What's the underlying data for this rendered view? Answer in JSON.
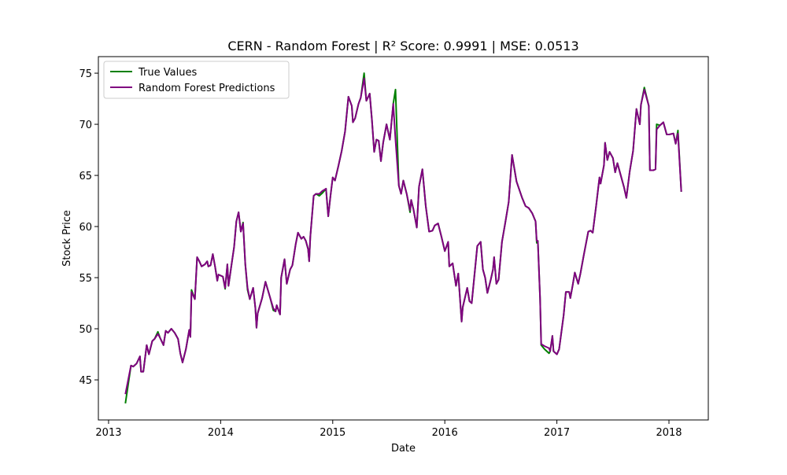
{
  "chart_data": {
    "type": "line",
    "title": "CERN - Random Forest | R² Score: 0.9991 | MSE: 0.0513",
    "xlabel": "Date",
    "ylabel": "Stock Price",
    "legend": "upper left",
    "grid": false,
    "xlim": [
      2012.909,
      2018.351
    ],
    "xticks": [
      2013,
      2014,
      2015,
      2016,
      2017,
      2018
    ],
    "ylim": [
      41.08,
      76.62
    ],
    "yticks": [
      45,
      50,
      55,
      60,
      65,
      70,
      75
    ],
    "x": [
      2013.15,
      2013.2,
      2013.22,
      2013.25,
      2013.28,
      2013.29,
      2013.31,
      2013.34,
      2013.36,
      2013.39,
      2013.41,
      2013.44,
      2013.46,
      2013.49,
      2013.51,
      2013.53,
      2013.56,
      2013.59,
      2013.62,
      2013.64,
      2013.66,
      2013.69,
      2013.72,
      2013.73,
      2013.74,
      2013.77,
      2013.79,
      2013.81,
      2013.83,
      2013.86,
      2013.88,
      2013.89,
      2013.91,
      2013.93,
      2013.95,
      2013.97,
      2013.98,
      2014.02,
      2014.04,
      2014.06,
      2014.07,
      2014.1,
      2014.12,
      2014.14,
      2014.16,
      2014.18,
      2014.2,
      2014.22,
      2014.24,
      2014.26,
      2014.29,
      2014.31,
      2014.32,
      2014.33,
      2014.37,
      2014.4,
      2014.44,
      2014.47,
      2014.49,
      2014.5,
      2014.53,
      2014.54,
      2014.57,
      2014.59,
      2014.62,
      2014.64,
      2014.67,
      2014.69,
      2014.72,
      2014.74,
      2014.76,
      2014.78,
      2014.79,
      2014.8,
      2014.83,
      2014.85,
      2014.88,
      2014.91,
      2014.94,
      2014.96,
      2014.98,
      2015.0,
      2015.02,
      2015.05,
      2015.08,
      2015.11,
      2015.14,
      2015.17,
      2015.18,
      2015.2,
      2015.23,
      2015.25,
      2015.28,
      2015.3,
      2015.33,
      2015.35,
      2015.37,
      2015.39,
      2015.41,
      2015.43,
      2015.45,
      2015.48,
      2015.51,
      2015.54,
      2015.56,
      2015.59,
      2015.61,
      2015.63,
      2015.66,
      2015.69,
      2015.7,
      2015.72,
      2015.75,
      2015.77,
      2015.8,
      2015.83,
      2015.86,
      2015.89,
      2015.91,
      2015.94,
      2015.97,
      2016.0,
      2016.03,
      2016.04,
      2016.07,
      2016.1,
      2016.12,
      2016.15,
      2016.16,
      2016.2,
      2016.22,
      2016.24,
      2016.29,
      2016.32,
      2016.34,
      2016.36,
      2016.38,
      2016.41,
      2016.43,
      2016.44,
      2016.46,
      2016.48,
      2016.51,
      2016.54,
      2016.57,
      2016.6,
      2016.64,
      2016.69,
      2016.72,
      2016.75,
      2016.78,
      2016.81,
      2016.82,
      2016.83,
      2016.85,
      2016.86,
      2016.89,
      2016.93,
      2016.94,
      2016.96,
      2016.97,
      2017.0,
      2017.02,
      2017.06,
      2017.08,
      2017.11,
      2017.12,
      2017.14,
      2017.16,
      2017.19,
      2017.21,
      2017.24,
      2017.28,
      2017.3,
      2017.32,
      2017.35,
      2017.38,
      2017.39,
      2017.42,
      2017.43,
      2017.45,
      2017.47,
      2017.5,
      2017.52,
      2017.54,
      2017.57,
      2017.6,
      2017.62,
      2017.65,
      2017.68,
      2017.71,
      2017.74,
      2017.75,
      2017.78,
      2017.82,
      2017.83,
      2017.86,
      2017.88,
      2017.89,
      2017.92,
      2017.95,
      2017.98,
      2018.0,
      2018.04,
      2018.06,
      2018.08,
      2018.11
    ],
    "series": [
      {
        "name": "True Values",
        "color": "#008000",
        "values": [
          42.7,
          46.4,
          46.3,
          46.6,
          47.3,
          45.8,
          45.8,
          48.4,
          47.5,
          48.8,
          49.0,
          49.7,
          49.1,
          48.4,
          49.8,
          49.6,
          50.0,
          49.6,
          49.0,
          47.6,
          46.7,
          48.0,
          49.9,
          49.2,
          53.8,
          52.9,
          57.0,
          56.6,
          56.1,
          56.3,
          56.6,
          56.1,
          56.2,
          57.3,
          56.1,
          54.7,
          55.3,
          55.1,
          53.9,
          56.3,
          54.2,
          56.5,
          58.0,
          60.5,
          61.4,
          59.5,
          60.4,
          56.3,
          53.8,
          52.9,
          54.0,
          52.0,
          50.1,
          51.5,
          53.0,
          54.6,
          53.1,
          51.8,
          51.7,
          52.3,
          51.4,
          55.0,
          56.8,
          54.4,
          55.8,
          56.2,
          58.3,
          59.4,
          58.8,
          59.0,
          58.6,
          57.8,
          56.6,
          59.0,
          63.0,
          63.2,
          63.0,
          63.3,
          63.7,
          61.0,
          63.0,
          64.8,
          64.5,
          65.9,
          67.4,
          69.3,
          72.7,
          71.8,
          70.2,
          70.6,
          72.0,
          72.6,
          75.0,
          72.3,
          73.0,
          70.4,
          67.3,
          68.5,
          68.4,
          66.4,
          68.2,
          70.0,
          68.5,
          72.0,
          73.4,
          64.0,
          63.2,
          64.5,
          63.2,
          61.4,
          62.6,
          61.7,
          59.9,
          63.9,
          65.6,
          62.0,
          59.5,
          59.6,
          60.1,
          60.3,
          59.0,
          57.6,
          58.5,
          56.1,
          56.4,
          54.2,
          55.4,
          50.7,
          52.1,
          54.0,
          52.7,
          52.5,
          58.1,
          58.5,
          55.8,
          55.0,
          53.5,
          54.8,
          55.8,
          57.0,
          54.4,
          54.8,
          58.5,
          60.4,
          62.4,
          67.0,
          64.4,
          62.8,
          62.0,
          61.8,
          61.3,
          60.5,
          58.4,
          58.6,
          53.0,
          48.4,
          48.0,
          47.6,
          47.8,
          49.3,
          47.8,
          47.5,
          48.0,
          51.3,
          53.6,
          53.6,
          53.0,
          54.2,
          55.5,
          54.4,
          55.4,
          57.2,
          59.5,
          59.6,
          59.4,
          62.0,
          64.8,
          64.2,
          66.0,
          68.2,
          66.5,
          67.3,
          66.7,
          65.3,
          66.2,
          65.0,
          63.8,
          62.8,
          65.4,
          67.4,
          71.5,
          70.0,
          71.9,
          73.6,
          71.8,
          65.5,
          65.5,
          65.6,
          70.0,
          69.9,
          70.2,
          69.0,
          69.0,
          69.1,
          68.1,
          69.4,
          63.4
        ]
      },
      {
        "name": "Random Forest Predictions",
        "color": "#800080",
        "values": [
          43.6,
          46.4,
          46.3,
          46.6,
          47.3,
          45.8,
          45.8,
          48.4,
          47.5,
          48.8,
          49.0,
          49.5,
          49.1,
          48.4,
          49.8,
          49.6,
          50.0,
          49.6,
          49.0,
          47.6,
          46.7,
          48.0,
          49.9,
          49.2,
          53.6,
          52.9,
          57.0,
          56.6,
          56.1,
          56.3,
          56.6,
          56.1,
          56.2,
          57.3,
          56.1,
          54.7,
          55.3,
          55.1,
          54.0,
          56.3,
          54.2,
          56.5,
          58.0,
          60.5,
          61.4,
          59.5,
          60.3,
          56.3,
          54.0,
          52.9,
          54.0,
          52.0,
          50.1,
          51.5,
          53.0,
          54.6,
          53.1,
          52.0,
          51.7,
          52.3,
          51.4,
          55.0,
          56.8,
          54.4,
          55.8,
          56.2,
          58.3,
          59.4,
          58.8,
          59.0,
          58.6,
          57.8,
          56.6,
          59.0,
          63.0,
          63.2,
          63.2,
          63.5,
          63.7,
          61.0,
          63.0,
          64.8,
          64.5,
          65.9,
          67.4,
          69.3,
          72.7,
          71.8,
          70.2,
          70.6,
          72.0,
          72.6,
          74.5,
          72.3,
          73.0,
          70.4,
          67.3,
          68.5,
          68.4,
          66.4,
          68.2,
          70.0,
          68.5,
          72.0,
          68.5,
          64.0,
          63.2,
          64.5,
          63.2,
          61.6,
          62.6,
          61.7,
          59.9,
          63.9,
          65.6,
          62.0,
          59.5,
          59.6,
          60.1,
          60.3,
          59.0,
          57.6,
          58.5,
          56.1,
          56.4,
          54.2,
          55.4,
          50.7,
          52.1,
          54.0,
          52.7,
          52.5,
          58.1,
          58.5,
          55.8,
          55.0,
          53.5,
          54.8,
          55.8,
          57.0,
          54.4,
          54.8,
          58.5,
          60.4,
          62.4,
          67.0,
          64.4,
          62.8,
          62.0,
          61.8,
          61.3,
          60.5,
          58.6,
          58.6,
          53.0,
          48.5,
          48.3,
          48.1,
          47.8,
          49.3,
          47.8,
          47.5,
          48.0,
          51.3,
          53.6,
          53.6,
          53.0,
          54.2,
          55.5,
          54.4,
          55.4,
          57.2,
          59.5,
          59.6,
          59.4,
          62.0,
          64.8,
          64.2,
          66.0,
          68.2,
          66.5,
          67.3,
          66.7,
          65.3,
          66.2,
          65.0,
          63.8,
          62.8,
          65.4,
          67.4,
          71.5,
          70.0,
          71.9,
          73.4,
          71.8,
          65.5,
          65.5,
          65.6,
          69.5,
          69.9,
          70.2,
          69.0,
          69.0,
          69.1,
          68.1,
          69.1,
          63.4
        ]
      }
    ]
  }
}
